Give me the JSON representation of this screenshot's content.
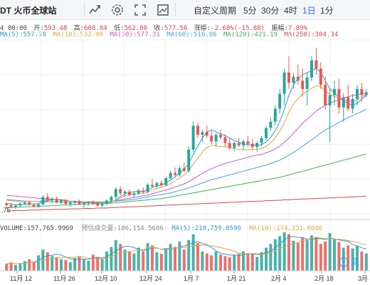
{
  "toolbar": {
    "pair_title": "DT 火币全球站",
    "period_label": "自定义周期",
    "intervals": [
      "5分",
      "30分",
      "4时",
      "1日",
      "1分"
    ],
    "active_interval": "1日"
  },
  "ohlc": {
    "time": "4 00:00",
    "open_label": "开:",
    "open": "593.48",
    "high_label": "高:",
    "high": "608.84",
    "low_label": "低:",
    "low": "562.00",
    "close_label": "收:",
    "close": "577.56",
    "change_label": "涨幅:",
    "change": "-2.68%(-15.88)",
    "amp_label": "振幅:",
    "amp": "7.89%"
  },
  "ma": {
    "ma5": "MA(5):557.78",
    "ma10": "MA(10):532.90",
    "ma30": "MA(30):577.31",
    "ma60": "MA(60):516.86",
    "ma120": "MA(120):421.19",
    "ma250": "MA(250):304.34"
  },
  "price_axis_label": ".75",
  "volume": {
    "vol": "VOLUME:157,765.9969",
    "est": "预估成交量:186,154.5686",
    "ma5": "MA(5):210,759.0590",
    "ma10": "MA(10):174,231.6046"
  },
  "x_labels": [
    "11月 12",
    "11月 26",
    "12月 10",
    "12月 24",
    "1月 7",
    "1月 21",
    "2月 4",
    "2月 18",
    "3月 4"
  ],
  "watermark": "复",
  "colors": {
    "up": "#26a69a",
    "down": "#ef5350",
    "active": "#2962ff"
  },
  "chart_data": {
    "type": "candlestick",
    "candles": [
      [
        280,
        284,
        270,
        276
      ],
      [
        276,
        282,
        268,
        272
      ],
      [
        272,
        278,
        266,
        275
      ],
      [
        275,
        283,
        271,
        280
      ],
      [
        280,
        286,
        276,
        283
      ],
      [
        283,
        286,
        275,
        277
      ],
      [
        277,
        280,
        270,
        273
      ],
      [
        273,
        279,
        269,
        278
      ],
      [
        278,
        300,
        276,
        296
      ],
      [
        296,
        305,
        284,
        287
      ],
      [
        287,
        296,
        282,
        292
      ],
      [
        292,
        297,
        280,
        283
      ],
      [
        283,
        290,
        278,
        288
      ],
      [
        288,
        292,
        276,
        279
      ],
      [
        279,
        285,
        272,
        282
      ],
      [
        282,
        288,
        277,
        285
      ],
      [
        285,
        290,
        276,
        278
      ],
      [
        278,
        284,
        270,
        281
      ],
      [
        281,
        286,
        275,
        284
      ],
      [
        284,
        288,
        277,
        280
      ],
      [
        280,
        284,
        272,
        275
      ],
      [
        275,
        282,
        270,
        279
      ],
      [
        279,
        290,
        276,
        287
      ],
      [
        287,
        300,
        283,
        296
      ],
      [
        296,
        320,
        290,
        315
      ],
      [
        315,
        322,
        300,
        305
      ],
      [
        305,
        312,
        296,
        309
      ],
      [
        309,
        314,
        298,
        301
      ],
      [
        301,
        308,
        294,
        305
      ],
      [
        305,
        316,
        300,
        312
      ],
      [
        312,
        320,
        304,
        308
      ],
      [
        308,
        330,
        305,
        326
      ],
      [
        326,
        340,
        318,
        322
      ],
      [
        322,
        334,
        316,
        330
      ],
      [
        330,
        336,
        320,
        325
      ],
      [
        325,
        345,
        322,
        342
      ],
      [
        342,
        360,
        336,
        355
      ],
      [
        355,
        368,
        345,
        350
      ],
      [
        350,
        372,
        346,
        366
      ],
      [
        366,
        380,
        356,
        360
      ],
      [
        360,
        420,
        356,
        412
      ],
      [
        412,
        480,
        405,
        470
      ],
      [
        470,
        478,
        440,
        448
      ],
      [
        448,
        460,
        430,
        455
      ],
      [
        455,
        470,
        440,
        446
      ],
      [
        446,
        458,
        426,
        432
      ],
      [
        432,
        452,
        420,
        448
      ],
      [
        448,
        460,
        436,
        442
      ],
      [
        442,
        450,
        420,
        428
      ],
      [
        428,
        440,
        410,
        416
      ],
      [
        416,
        432,
        408,
        428
      ],
      [
        428,
        440,
        418,
        422
      ],
      [
        422,
        436,
        410,
        432
      ],
      [
        432,
        445,
        420,
        426
      ],
      [
        426,
        438,
        412,
        418
      ],
      [
        418,
        432,
        406,
        428
      ],
      [
        428,
        446,
        420,
        440
      ],
      [
        440,
        470,
        434,
        465
      ],
      [
        465,
        490,
        458,
        480
      ],
      [
        480,
        520,
        470,
        512
      ],
      [
        512,
        560,
        500,
        548
      ],
      [
        548,
        610,
        520,
        600
      ],
      [
        600,
        640,
        560,
        575
      ],
      [
        575,
        598,
        560,
        590
      ],
      [
        590,
        620,
        570,
        580
      ],
      [
        580,
        610,
        540,
        560
      ],
      [
        560,
        600,
        520,
        588
      ],
      [
        588,
        640,
        580,
        630
      ],
      [
        630,
        660,
        595,
        610
      ],
      [
        610,
        625,
        560,
        570
      ],
      [
        570,
        590,
        510,
        520
      ],
      [
        520,
        560,
        430,
        545
      ],
      [
        545,
        580,
        520,
        560
      ],
      [
        560,
        584,
        500,
        515
      ],
      [
        515,
        550,
        480,
        540
      ],
      [
        540,
        570,
        505,
        512
      ],
      [
        512,
        548,
        500,
        536
      ],
      [
        536,
        570,
        520,
        560
      ],
      [
        560,
        575,
        530,
        545
      ],
      [
        545,
        560,
        540,
        552
      ]
    ],
    "volumes": [
      0.18,
      0.22,
      0.15,
      0.2,
      0.25,
      0.3,
      0.22,
      0.4,
      0.55,
      0.48,
      0.38,
      0.35,
      0.3,
      0.28,
      0.22,
      0.33,
      0.38,
      0.3,
      0.26,
      0.42,
      0.36,
      0.3,
      0.5,
      0.62,
      0.8,
      0.7,
      0.55,
      0.5,
      0.45,
      0.6,
      0.5,
      0.72,
      0.66,
      0.48,
      0.44,
      0.58,
      0.7,
      0.62,
      0.76,
      0.55,
      0.8,
      0.95,
      0.72,
      0.5,
      0.45,
      0.4,
      0.5,
      0.42,
      0.38,
      0.35,
      0.4,
      0.44,
      0.5,
      0.46,
      0.42,
      0.36,
      0.48,
      0.6,
      0.7,
      0.82,
      0.9,
      1.0,
      0.95,
      0.78,
      0.72,
      0.86,
      0.8,
      0.92,
      0.88,
      0.7,
      0.76,
      0.98,
      0.82,
      0.75,
      0.6,
      0.66,
      0.58,
      0.64,
      0.5,
      0.45
    ],
    "ma_lines": {
      "ma5": [
        280,
        279,
        277,
        277,
        278,
        279,
        279,
        280,
        284,
        287,
        289,
        290,
        290,
        288,
        286,
        285,
        283,
        282,
        282,
        282,
        281,
        280,
        280,
        283,
        289,
        297,
        304,
        307,
        309,
        310,
        309,
        313,
        319,
        323,
        325,
        330,
        337,
        345,
        355,
        364,
        378,
        400,
        420,
        440,
        455,
        460,
        455,
        450,
        446,
        440,
        434,
        430,
        426,
        424,
        423,
        422,
        424,
        430,
        442,
        458,
        480,
        510,
        545,
        570,
        585,
        595,
        600,
        605,
        610,
        600,
        580,
        560,
        550,
        540,
        530,
        525,
        520,
        525,
        535,
        545
      ],
      "ma30": [
        300,
        299,
        298,
        297,
        296,
        295,
        294,
        293,
        292,
        291,
        290,
        289,
        288,
        287,
        286,
        285,
        285,
        284,
        284,
        284,
        284,
        284,
        284,
        285,
        287,
        289,
        291,
        293,
        295,
        297,
        299,
        301,
        304,
        307,
        310,
        313,
        316,
        320,
        324,
        328,
        333,
        340,
        347,
        354,
        360,
        365,
        370,
        374,
        378,
        381,
        384,
        387,
        390,
        393,
        396,
        398,
        400,
        404,
        408,
        414,
        420,
        430,
        440,
        452,
        464,
        476,
        486,
        496,
        506,
        514,
        520,
        525,
        530,
        534,
        538,
        541,
        544,
        546,
        548,
        550
      ],
      "ma60": [
        290,
        289,
        288,
        287,
        286,
        286,
        285,
        285,
        284,
        284,
        284,
        283,
        283,
        283,
        283,
        283,
        283,
        283,
        283,
        283,
        283,
        284,
        284,
        285,
        286,
        287,
        288,
        289,
        290,
        292,
        294,
        296,
        298,
        300,
        302,
        304,
        306,
        309,
        312,
        315,
        318,
        322,
        326,
        330,
        334,
        338,
        341,
        344,
        347,
        350,
        353,
        356,
        359,
        362,
        365,
        368,
        371,
        374,
        378,
        382,
        386,
        392,
        398,
        405,
        412,
        420,
        428,
        436,
        444,
        452,
        460,
        466,
        472,
        478,
        484,
        490,
        495,
        500,
        505,
        510
      ],
      "ma120": [
        270,
        270,
        271,
        271,
        272,
        272,
        273,
        273,
        274,
        274,
        275,
        275,
        276,
        276,
        277,
        277,
        278,
        278,
        279,
        279,
        280,
        280,
        281,
        281,
        282,
        283,
        284,
        285,
        286,
        287,
        288,
        289,
        290,
        291,
        292,
        294,
        296,
        298,
        300,
        302,
        304,
        306,
        308,
        310,
        312,
        314,
        316,
        318,
        320,
        322,
        324,
        326,
        328,
        330,
        332,
        334,
        336,
        338,
        340,
        342,
        344,
        347,
        350,
        353,
        356,
        359,
        362,
        365,
        368,
        371,
        374,
        377,
        380,
        383,
        386,
        389,
        392,
        395,
        398,
        401
      ],
      "ma250": [
        262,
        262,
        263,
        263,
        263,
        264,
        264,
        264,
        265,
        265,
        265,
        266,
        266,
        266,
        267,
        267,
        267,
        268,
        268,
        268,
        269,
        269,
        269,
        270,
        270,
        271,
        271,
        272,
        272,
        273,
        273,
        274,
        274,
        275,
        275,
        276,
        276,
        277,
        277,
        278,
        278,
        279,
        279,
        280,
        280,
        281,
        281,
        282,
        282,
        283,
        283,
        284,
        284,
        285,
        285,
        286,
        286,
        287,
        287,
        288,
        288,
        289,
        289,
        290,
        290,
        291,
        291,
        292,
        292,
        293,
        293,
        294,
        294,
        295,
        295,
        296,
        296,
        297,
        297,
        298
      ]
    },
    "price_range": [
      255,
      680
    ]
  }
}
